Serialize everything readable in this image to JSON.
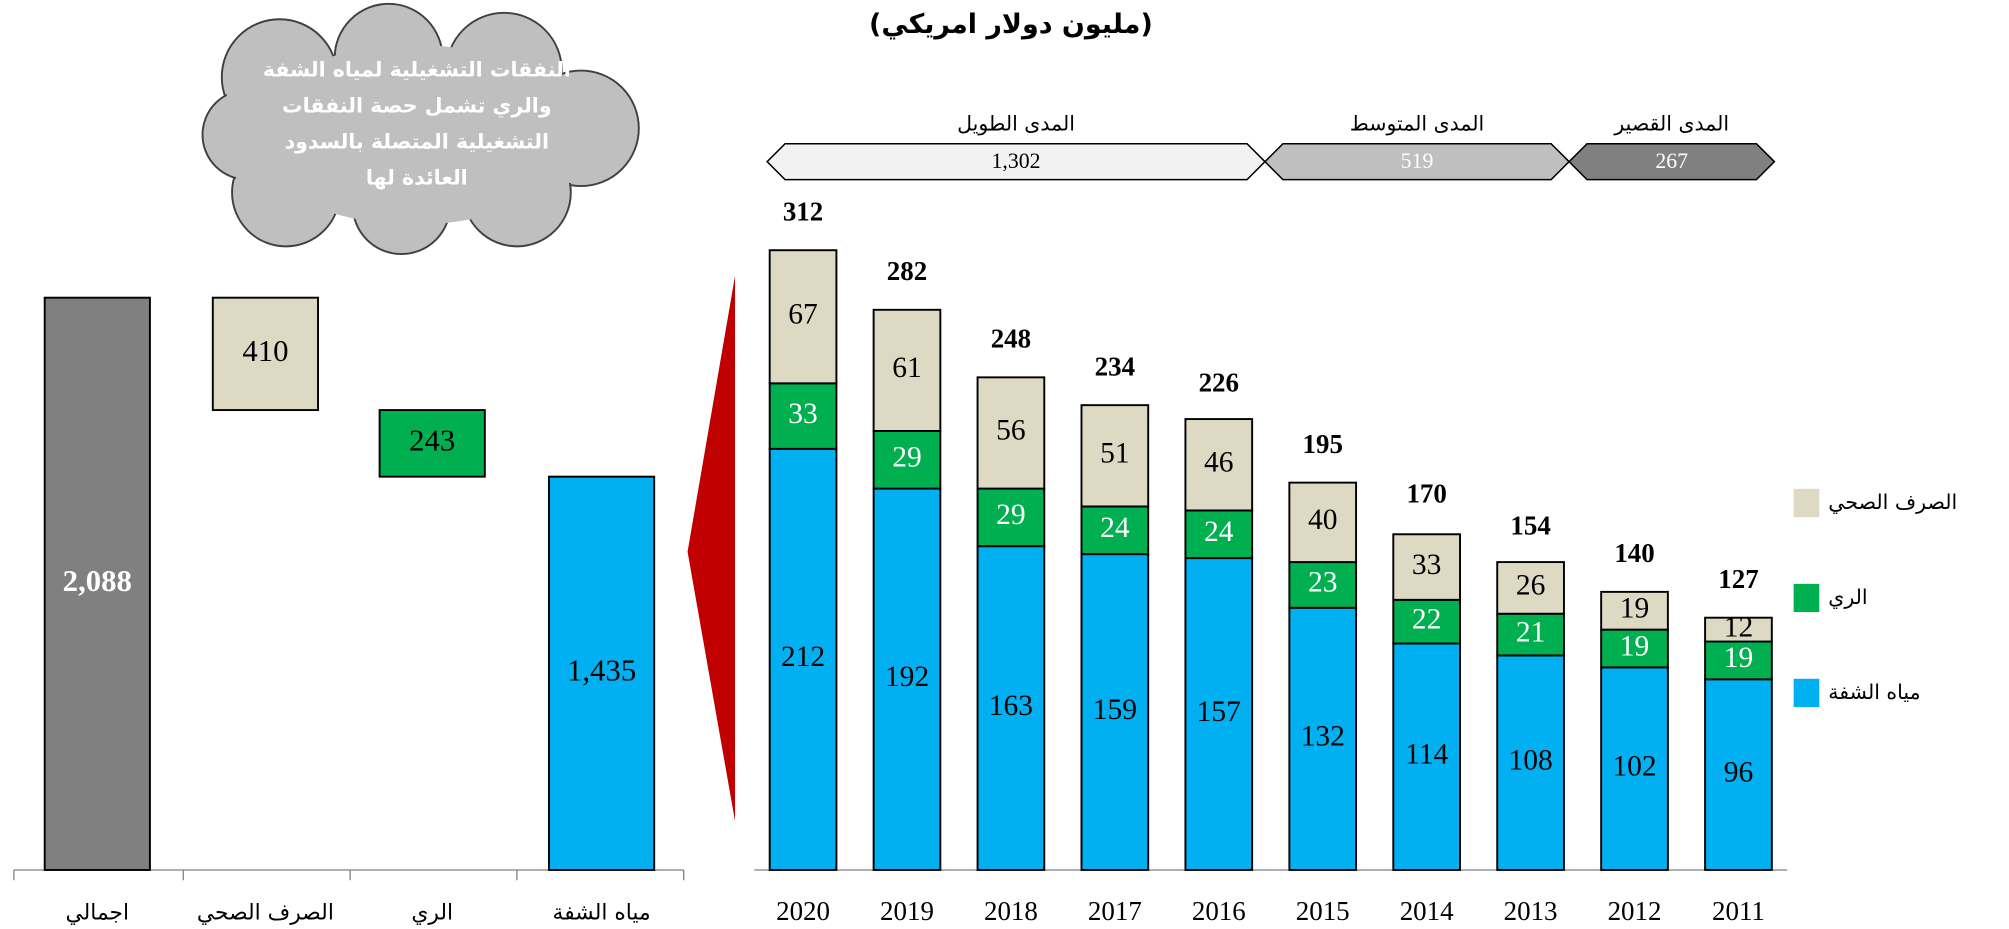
{
  "subtitle": "(مليون دولار امريكي)",
  "annotation_lines": [
    "النفقات التشغيلية لمياه الشفة",
    "والري تشمل حصة النفقات",
    "التشغيلية المتصلة بالسدود",
    "العائدة لها"
  ],
  "chart_data": [
    {
      "type": "waterfall",
      "categories": [
        "اجمالي",
        "الصرف الصحي",
        "الري",
        "مياه الشفة"
      ],
      "values": [
        2088,
        410,
        243,
        1435
      ],
      "value_labels": [
        "2,088",
        "410",
        "243",
        "1,435"
      ],
      "colors": [
        "#808080",
        "#ddd9c3",
        "#00b050",
        "#00b0f0"
      ]
    },
    {
      "type": "stacked_bar",
      "categories": [
        "2020",
        "2019",
        "2018",
        "2017",
        "2016",
        "2015",
        "2014",
        "2013",
        "2012",
        "2011"
      ],
      "series": [
        {
          "name": "مياه الشفة",
          "color": "#00b0f0",
          "values": [
            212,
            192,
            163,
            159,
            157,
            132,
            114,
            108,
            102,
            96
          ]
        },
        {
          "name": "الري",
          "color": "#00b050",
          "values": [
            33,
            29,
            29,
            24,
            24,
            23,
            22,
            21,
            19,
            19
          ]
        },
        {
          "name": "الصرف الصحي",
          "color": "#ddd9c3",
          "values": [
            67,
            61,
            56,
            51,
            46,
            40,
            33,
            26,
            19,
            12
          ]
        }
      ],
      "totals": [
        312,
        282,
        248,
        234,
        226,
        195,
        170,
        154,
        140,
        127
      ],
      "ranges": [
        {
          "name": "المدى الطويل",
          "value": 1302,
          "label": "1,302",
          "color": "#f2f2f2"
        },
        {
          "name": "المدى المتوسط",
          "value": 519,
          "label": "519",
          "color": "#bfbfbf"
        },
        {
          "name": "المدى القصير",
          "value": 267,
          "label": "267",
          "color": "#808080"
        }
      ]
    }
  ]
}
